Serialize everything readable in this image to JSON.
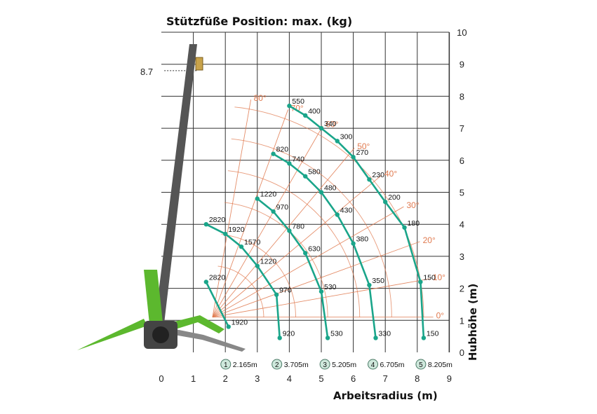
{
  "chart_data": {
    "type": "scatter",
    "title": "Stützfüße Position: max. (kg)",
    "xlabel": "Arbeitsradius (m)",
    "ylabel": "Hubhöhe (m)",
    "xlim": [
      0,
      9
    ],
    "ylim": [
      0,
      10
    ],
    "x_ticks": [
      "0",
      "1",
      "2",
      "3",
      "4",
      "5",
      "6",
      "7",
      "8",
      "9"
    ],
    "y_ticks": [
      "0",
      "1",
      "2",
      "3",
      "4",
      "5",
      "6",
      "7",
      "8",
      "9",
      "10"
    ],
    "grid": true,
    "max_height_marker": "8.7",
    "boom_angles": [
      "0°",
      "10°",
      "20°",
      "30°",
      "40°",
      "50°",
      "60°",
      "70°",
      "80°"
    ],
    "colors": {
      "curves": "#1aa58a",
      "angles": "#e07a4f",
      "grid": "#333333",
      "crane": "#5cb82e",
      "boom": "#555555"
    },
    "series": [
      {
        "radius_label": "2.165m",
        "marker": "1",
        "points": [
          {
            "x": 2.1,
            "y": 0.8,
            "label": "1920"
          },
          {
            "x": 1.4,
            "y": 2.2,
            "label": "2820"
          }
        ]
      },
      {
        "radius_label": "3.705m",
        "marker": "2",
        "points": [
          {
            "x": 3.7,
            "y": 0.45,
            "label": "920"
          },
          {
            "x": 3.6,
            "y": 1.8,
            "label": "970"
          },
          {
            "x": 3.0,
            "y": 2.7,
            "label": "1220"
          },
          {
            "x": 2.5,
            "y": 3.3,
            "label": "1570"
          },
          {
            "x": 2.0,
            "y": 3.7,
            "label": "1920"
          },
          {
            "x": 1.4,
            "y": 4.0,
            "label": "2820"
          }
        ]
      },
      {
        "radius_label": "5.205m",
        "marker": "3",
        "points": [
          {
            "x": 5.2,
            "y": 0.45,
            "label": "530"
          },
          {
            "x": 5.0,
            "y": 1.9,
            "label": "530"
          },
          {
            "x": 4.5,
            "y": 3.1,
            "label": "630"
          },
          {
            "x": 4.0,
            "y": 3.8,
            "label": "780"
          },
          {
            "x": 3.5,
            "y": 4.4,
            "label": "970"
          },
          {
            "x": 3.0,
            "y": 4.8,
            "label": "1220"
          }
        ]
      },
      {
        "radius_label": "6.705m",
        "marker": "4",
        "points": [
          {
            "x": 6.7,
            "y": 0.45,
            "label": "330"
          },
          {
            "x": 6.5,
            "y": 2.1,
            "label": "350"
          },
          {
            "x": 6.0,
            "y": 3.4,
            "label": "380"
          },
          {
            "x": 5.5,
            "y": 4.3,
            "label": "430"
          },
          {
            "x": 5.0,
            "y": 5.0,
            "label": "480"
          },
          {
            "x": 4.5,
            "y": 5.5,
            "label": "580"
          },
          {
            "x": 4.0,
            "y": 5.9,
            "label": "740"
          },
          {
            "x": 3.5,
            "y": 6.2,
            "label": "820"
          }
        ]
      },
      {
        "radius_label": "8.205m",
        "marker": "5",
        "points": [
          {
            "x": 8.2,
            "y": 0.45,
            "label": "150"
          },
          {
            "x": 8.1,
            "y": 2.2,
            "label": "150"
          },
          {
            "x": 7.6,
            "y": 3.9,
            "label": "180"
          },
          {
            "x": 7.0,
            "y": 4.7,
            "label": "200"
          },
          {
            "x": 6.5,
            "y": 5.4,
            "label": "230"
          },
          {
            "x": 6.0,
            "y": 6.1,
            "label": "270"
          },
          {
            "x": 5.5,
            "y": 6.6,
            "label": "300"
          },
          {
            "x": 5.0,
            "y": 7.0,
            "label": "340"
          },
          {
            "x": 4.5,
            "y": 7.4,
            "label": "400"
          },
          {
            "x": 4.0,
            "y": 7.7,
            "label": "550"
          }
        ]
      }
    ]
  }
}
